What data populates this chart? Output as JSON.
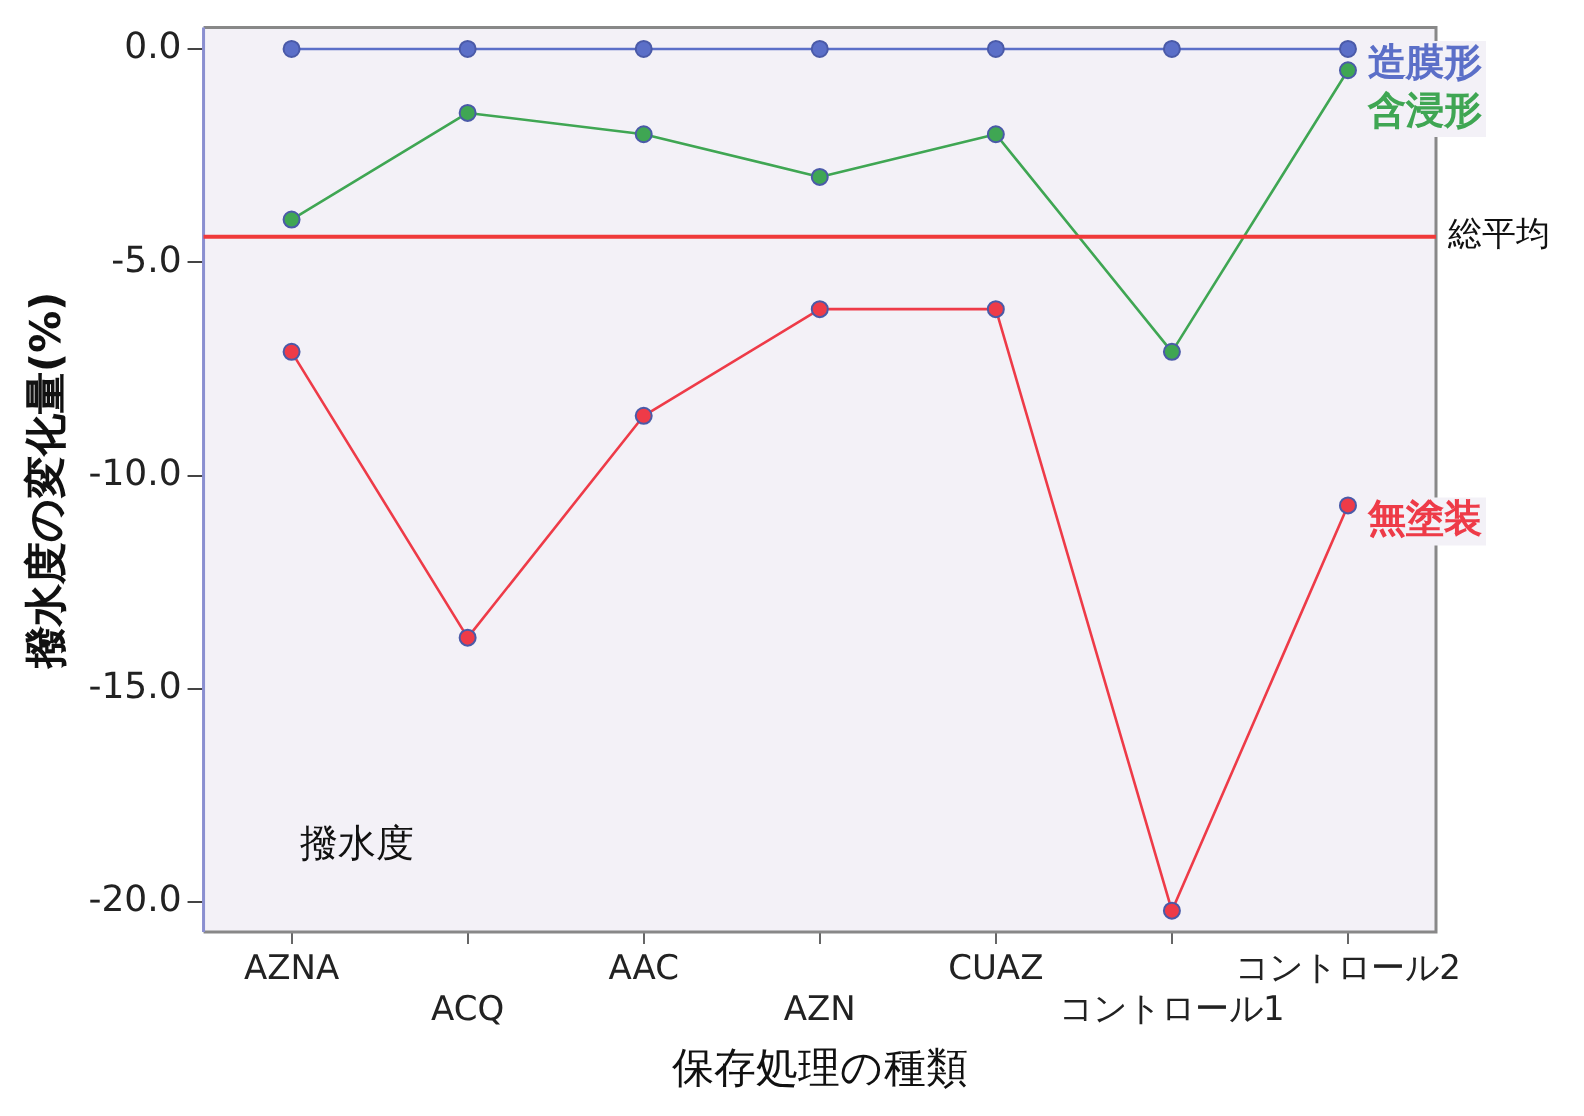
{
  "chart_data": {
    "type": "line",
    "xlabel": "保存処理の種類",
    "ylabel": "撥水度の変化量(%)",
    "categories": [
      "AZNA",
      "ACQ",
      "AAC",
      "AZN",
      "CUAZ",
      "コントロール1",
      "コントロール2"
    ],
    "series": [
      {
        "name": "造膜形",
        "color": "#5b6fc8",
        "values": [
          0,
          0,
          0,
          0,
          0,
          0,
          0
        ]
      },
      {
        "name": "含浸形",
        "color": "#3fa653",
        "values": [
          -4.0,
          -1.5,
          -2.0,
          -3.0,
          -2.0,
          -7.1,
          -0.5
        ]
      },
      {
        "name": "無塗装",
        "color": "#ee3b48",
        "values": [
          -7.1,
          -13.8,
          -8.6,
          -6.1,
          -6.1,
          -20.2,
          -10.7
        ]
      }
    ],
    "ylim": [
      -20.7,
      0.5
    ],
    "yticks": [
      {
        "value": 0,
        "label": "0.0"
      },
      {
        "value": -5,
        "label": "-5.0"
      },
      {
        "value": -10,
        "label": "-10.0"
      },
      {
        "value": -15,
        "label": "-15.0"
      },
      {
        "value": -20,
        "label": "-20.0"
      }
    ],
    "ref_lines": [
      {
        "axis": "y",
        "value": -4.4,
        "label": "総平均",
        "color": "#f03a3a"
      }
    ],
    "annotations": [
      "撥水度"
    ],
    "marker": "circle",
    "line_style": "solid",
    "grid": false,
    "legend": false
  }
}
